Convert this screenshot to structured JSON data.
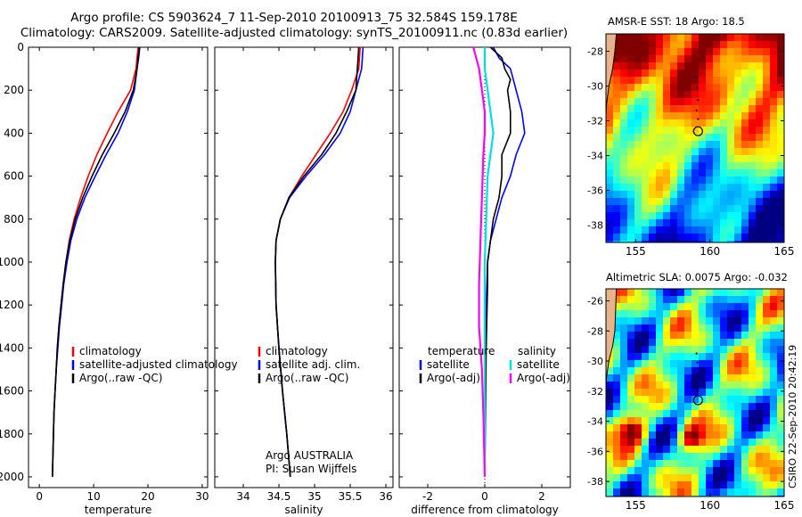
{
  "header": {
    "line1": "Argo profile: CS 5903624_7 11-Sep-2010 20100913_75 32.584S 159.178E",
    "line2": "Climatology: CARS2009. Satellite-adjusted climatology: synTS_20100911.nc (0.83d earlier)"
  },
  "colors": {
    "climatology": "#ff0000",
    "satellite": "#0000ff",
    "argo": "#000000",
    "satellite_diff": "#00e0e0",
    "argo_adj": "#ff00ff"
  },
  "chart_data": [
    {
      "type": "line",
      "id": "temperature",
      "xlabel": "temperature",
      "ylabel": "",
      "xlim": [
        -2,
        31
      ],
      "ylim": [
        2050,
        0
      ],
      "reversed_y": true,
      "xticks": [
        0,
        10,
        20,
        30
      ],
      "yticks": [
        0,
        200,
        400,
        600,
        800,
        1000,
        1200,
        1400,
        1600,
        1800,
        2000
      ],
      "legend": {
        "placement": "lower-middle",
        "entries": [
          "climatology",
          "satellite-adjusted climatology",
          "Argo(..raw -QC)"
        ]
      },
      "series": [
        {
          "name": "climatology",
          "color": "red",
          "points": [
            [
              18.2,
              0
            ],
            [
              18.0,
              50
            ],
            [
              17.8,
              100
            ],
            [
              16.8,
              200
            ],
            [
              14.5,
              300
            ],
            [
              12.5,
              400
            ],
            [
              10.6,
              500
            ],
            [
              9.0,
              600
            ],
            [
              7.6,
              700
            ],
            [
              6.4,
              800
            ],
            [
              5.5,
              900
            ],
            [
              4.9,
              1000
            ],
            [
              4.4,
              1100
            ],
            [
              4.0,
              1200
            ],
            [
              3.6,
              1300
            ],
            [
              3.3,
              1400
            ],
            [
              3.1,
              1500
            ],
            [
              2.9,
              1600
            ],
            [
              2.7,
              1700
            ],
            [
              2.6,
              1800
            ],
            [
              2.5,
              1900
            ],
            [
              2.4,
              2000
            ]
          ]
        },
        {
          "name": "satellite-adjusted climatology",
          "color": "blue",
          "points": [
            [
              18.5,
              0
            ],
            [
              18.3,
              50
            ],
            [
              18.0,
              100
            ],
            [
              17.5,
              200
            ],
            [
              16.2,
              300
            ],
            [
              14.5,
              400
            ],
            [
              12.3,
              500
            ],
            [
              10.3,
              600
            ],
            [
              8.4,
              700
            ],
            [
              6.9,
              800
            ],
            [
              5.8,
              900
            ],
            [
              5.1,
              1000
            ],
            [
              4.5,
              1100
            ],
            [
              4.1,
              1200
            ],
            [
              3.7,
              1300
            ],
            [
              3.4,
              1400
            ],
            [
              3.1,
              1500
            ],
            [
              2.9,
              1600
            ],
            [
              2.7,
              1700
            ],
            [
              2.6,
              1800
            ],
            [
              2.5,
              1900
            ],
            [
              2.4,
              2000
            ]
          ]
        },
        {
          "name": "Argo(..raw -QC)",
          "color": "black",
          "points": [
            [
              18.4,
              0
            ],
            [
              18.2,
              50
            ],
            [
              18.0,
              100
            ],
            [
              17.3,
              200
            ],
            [
              15.8,
              300
            ],
            [
              13.8,
              400
            ],
            [
              11.6,
              500
            ],
            [
              9.7,
              600
            ],
            [
              8.0,
              700
            ],
            [
              6.6,
              800
            ],
            [
              5.6,
              900
            ],
            [
              4.9,
              1000
            ],
            [
              4.4,
              1100
            ],
            [
              4.0,
              1200
            ],
            [
              3.6,
              1300
            ],
            [
              3.3,
              1400
            ],
            [
              3.1,
              1500
            ],
            [
              2.9,
              1600
            ],
            [
              2.7,
              1700
            ],
            [
              2.6,
              1800
            ],
            [
              2.5,
              1900
            ],
            [
              2.4,
              2000
            ]
          ]
        }
      ]
    },
    {
      "type": "line",
      "id": "salinity",
      "xlabel": "salinity",
      "ylabel": "",
      "xlim": [
        33.6,
        36.1
      ],
      "ylim": [
        2050,
        0
      ],
      "reversed_y": true,
      "xticks": [
        34,
        34.5,
        35,
        35.5,
        36
      ],
      "xtick_labels": [
        "34",
        "34.5",
        "35",
        "35.5",
        "36"
      ],
      "yticks": [
        0,
        200,
        400,
        600,
        800,
        1000,
        1200,
        1400,
        1600,
        1800,
        2000
      ],
      "legend": {
        "placement": "lower-middle",
        "entries": [
          "climatology",
          "satellite adj. clim.",
          "Argo(..raw -QC)"
        ]
      },
      "annotation": [
        "Argo AUSTRALIA",
        "PI: Susan Wijffels"
      ],
      "series": [
        {
          "name": "climatology",
          "color": "red",
          "points": [
            [
              35.64,
              0
            ],
            [
              35.62,
              100
            ],
            [
              35.52,
              200
            ],
            [
              35.4,
              300
            ],
            [
              35.22,
              400
            ],
            [
              35.02,
              500
            ],
            [
              34.82,
              600
            ],
            [
              34.64,
              700
            ],
            [
              34.52,
              800
            ],
            [
              34.46,
              900
            ],
            [
              34.45,
              1000
            ],
            [
              34.46,
              1200
            ],
            [
              34.5,
              1400
            ],
            [
              34.55,
              1600
            ],
            [
              34.61,
              1800
            ],
            [
              34.66,
              2000
            ]
          ]
        },
        {
          "name": "satellite adj. clim.",
          "color": "blue",
          "points": [
            [
              35.68,
              0
            ],
            [
              35.66,
              100
            ],
            [
              35.58,
              200
            ],
            [
              35.5,
              300
            ],
            [
              35.36,
              400
            ],
            [
              35.14,
              500
            ],
            [
              34.88,
              600
            ],
            [
              34.65,
              700
            ],
            [
              34.52,
              800
            ],
            [
              34.46,
              900
            ],
            [
              34.45,
              1000
            ],
            [
              34.46,
              1200
            ],
            [
              34.5,
              1400
            ],
            [
              34.55,
              1600
            ],
            [
              34.61,
              1800
            ],
            [
              34.66,
              2000
            ]
          ]
        },
        {
          "name": "Argo(..raw -QC)",
          "color": "black",
          "points": [
            [
              35.62,
              0
            ],
            [
              35.6,
              100
            ],
            [
              35.58,
              200
            ],
            [
              35.45,
              300
            ],
            [
              35.3,
              400
            ],
            [
              35.1,
              500
            ],
            [
              34.85,
              600
            ],
            [
              34.64,
              700
            ],
            [
              34.52,
              800
            ],
            [
              34.46,
              900
            ],
            [
              34.45,
              1000
            ],
            [
              34.46,
              1200
            ],
            [
              34.5,
              1400
            ],
            [
              34.55,
              1600
            ],
            [
              34.61,
              1800
            ],
            [
              34.66,
              2000
            ]
          ]
        }
      ]
    },
    {
      "type": "line",
      "id": "difference",
      "xlabel": "difference from climatology",
      "ylabel": "",
      "xlim": [
        -3,
        3
      ],
      "ylim": [
        2050,
        0
      ],
      "reversed_y": true,
      "xticks": [
        -2,
        0,
        2
      ],
      "yticks": [
        0,
        200,
        400,
        600,
        800,
        1000,
        1200,
        1400,
        1600,
        1800,
        2000
      ],
      "legend": {
        "placement": "lower-middle",
        "groups": [
          {
            "heading": "temperature",
            "entries": [
              "satellite",
              "Argo(-adj)"
            ]
          },
          {
            "heading": "salinity",
            "entries": [
              "satellite",
              "Argo(-adj)"
            ]
          }
        ]
      },
      "series": [
        {
          "name": "temperature satellite",
          "color": "blue",
          "points": [
            [
              0.3,
              0
            ],
            [
              0.5,
              50
            ],
            [
              0.9,
              100
            ],
            [
              1.0,
              150
            ],
            [
              1.1,
              200
            ],
            [
              1.3,
              300
            ],
            [
              1.4,
              400
            ],
            [
              1.1,
              500
            ],
            [
              0.9,
              600
            ],
            [
              0.6,
              700
            ],
            [
              0.4,
              800
            ],
            [
              0.2,
              900
            ],
            [
              0.1,
              1000
            ],
            [
              0.05,
              1200
            ],
            [
              0.0,
              1400
            ],
            [
              0.0,
              2000
            ]
          ]
        },
        {
          "name": "temperature Argo(-adj)",
          "color": "black",
          "points": [
            [
              0.2,
              0
            ],
            [
              0.6,
              50
            ],
            [
              0.7,
              100
            ],
            [
              0.9,
              150
            ],
            [
              0.8,
              200
            ],
            [
              0.9,
              300
            ],
            [
              0.9,
              400
            ],
            [
              0.6,
              500
            ],
            [
              0.6,
              600
            ],
            [
              0.5,
              700
            ],
            [
              0.3,
              800
            ],
            [
              0.2,
              900
            ],
            [
              0.1,
              1000
            ],
            [
              0.1,
              1100
            ],
            [
              0.05,
              1400
            ],
            [
              0.0,
              2000
            ]
          ]
        },
        {
          "name": "salinity satellite",
          "color": "cyan",
          "points": [
            [
              0.0,
              0
            ],
            [
              0.0,
              100
            ],
            [
              0.1,
              200
            ],
            [
              0.2,
              300
            ],
            [
              0.3,
              400
            ],
            [
              0.2,
              500
            ],
            [
              0.1,
              600
            ],
            [
              0.05,
              800
            ],
            [
              0.0,
              1000
            ],
            [
              0.0,
              2000
            ]
          ]
        },
        {
          "name": "salinity Argo(-adj)",
          "color": "magenta",
          "points": [
            [
              -0.4,
              0
            ],
            [
              -0.3,
              50
            ],
            [
              -0.2,
              100
            ],
            [
              -0.1,
              200
            ],
            [
              0.0,
              300
            ],
            [
              0.0,
              400
            ],
            [
              -0.05,
              500
            ],
            [
              -0.1,
              700
            ],
            [
              -0.15,
              900
            ],
            [
              -0.2,
              1100
            ],
            [
              -0.2,
              1300
            ],
            [
              -0.1,
              1500
            ],
            [
              -0.05,
              1700
            ],
            [
              0.0,
              2000
            ]
          ]
        }
      ]
    },
    {
      "type": "heatmap",
      "id": "sst-map",
      "title": "AMSR-E SST: 18 Argo: 18.5",
      "xlim": [
        153,
        165
      ],
      "ylim": [
        -39,
        -27
      ],
      "xticks": [
        155,
        160,
        165
      ],
      "yticks": [
        -28,
        -30,
        -32,
        -34,
        -36,
        -38
      ],
      "argo_position": [
        159.2,
        -32.6
      ],
      "track": [
        [
          159.1,
          -29.5
        ],
        [
          159.15,
          -30.1
        ],
        [
          159.2,
          -30.8
        ],
        [
          159.1,
          -31.4
        ],
        [
          159.2,
          -31.9
        ]
      ]
    },
    {
      "type": "heatmap",
      "id": "sla-map",
      "title": "Altimetric SLA: 0.0075 Argo: -0.032",
      "xlim": [
        153,
        165
      ],
      "ylim": [
        -39,
        -25.2
      ],
      "xticks": [
        155,
        160,
        165
      ],
      "yticks": [
        -26,
        -28,
        -30,
        -32,
        -34,
        -36,
        -38
      ],
      "argo_position": [
        159.2,
        -32.6
      ],
      "track": [
        [
          159.1,
          -29.5
        ],
        [
          159.15,
          -30.1
        ],
        [
          159.2,
          -30.8
        ],
        [
          159.1,
          -31.4
        ],
        [
          159.2,
          -31.9
        ]
      ]
    }
  ],
  "footer": {
    "credit": "CSIRO 22-Sep-2010 20:42:19"
  }
}
